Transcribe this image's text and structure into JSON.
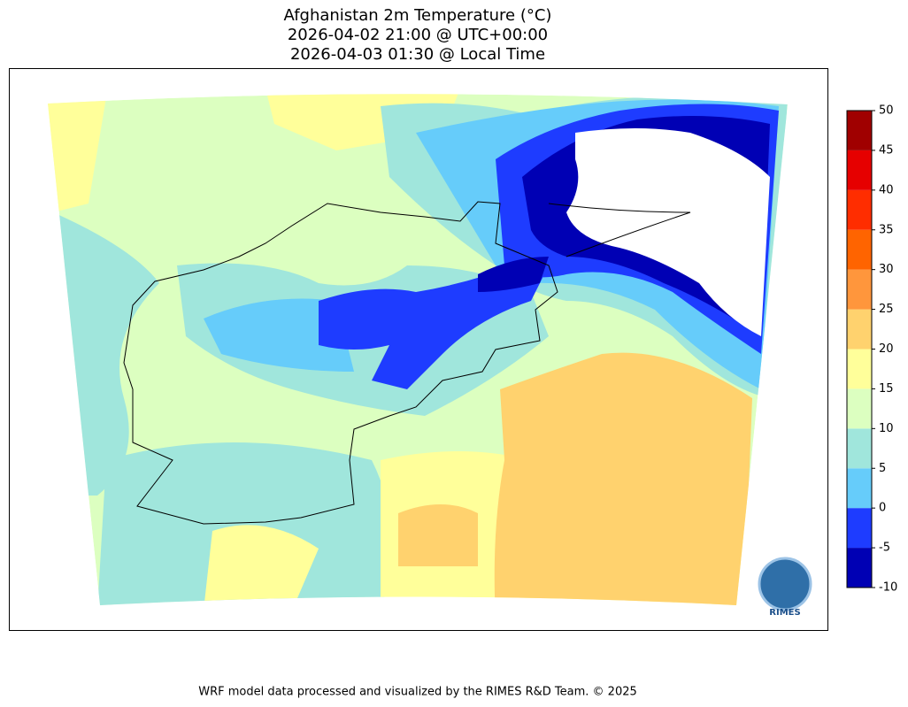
{
  "header": {
    "title_lines": [
      "Afghanistan 2m Temperature (°C)",
      "2026-04-02 21:00 @ UTC+00:00",
      "2026-04-03 01:30 @ Local Time"
    ]
  },
  "colorbar": {
    "ticks": [
      -10,
      -5,
      0,
      5,
      10,
      15,
      20,
      25,
      30,
      35,
      40,
      45,
      50
    ],
    "colors": [
      "#0000b4",
      "#1e3cff",
      "#66ccfa",
      "#a0e6dc",
      "#dcffc0",
      "#ffff9a",
      "#ffd26e",
      "#ff963c",
      "#ff6400",
      "#ff2d00",
      "#e60000",
      "#a00000"
    ]
  },
  "logo": {
    "label": "RIMES"
  },
  "footer": {
    "text": "WRF model data processed and visualized by the RIMES R&D Team. © 2025"
  }
}
